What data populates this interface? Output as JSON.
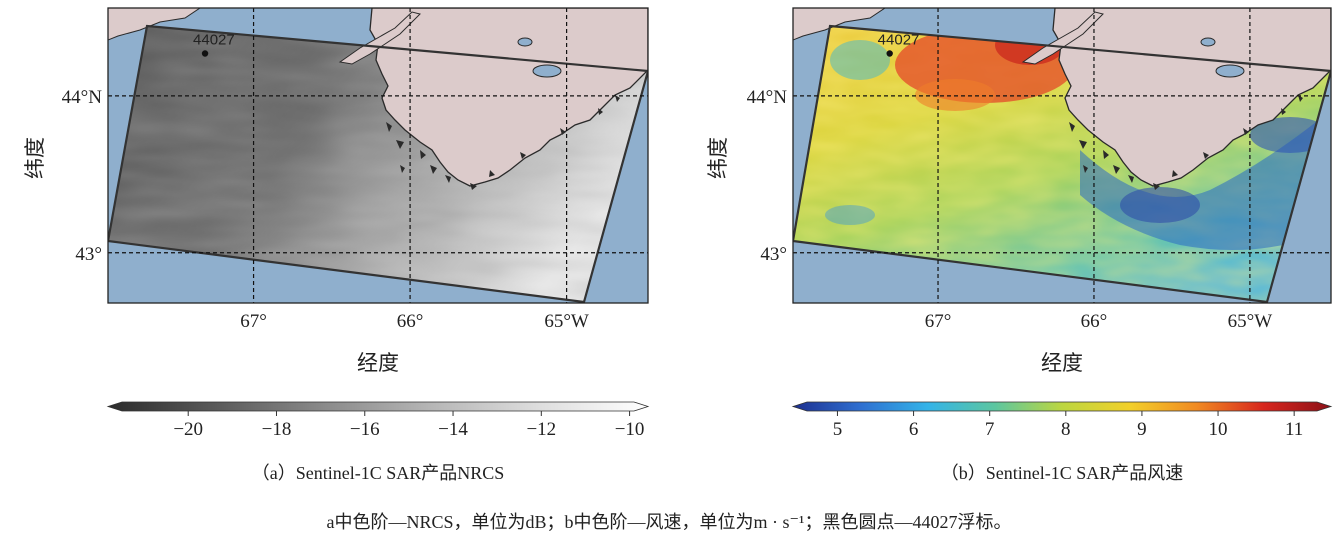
{
  "maps": [
    {
      "id": "a",
      "xlabel": "经度",
      "ylabel": "纬度",
      "lon_ticks": [
        {
          "lon": 67,
          "label": "67°"
        },
        {
          "lon": 66,
          "label": "66°"
        },
        {
          "lon": 65,
          "label": "65°W"
        }
      ],
      "lat_ticks": [
        {
          "lat": 44,
          "label": "44°N"
        },
        {
          "lat": 43,
          "label": "43°"
        }
      ],
      "buoy": {
        "label": "44027",
        "lon": -67.31,
        "lat": 44.27
      },
      "colorbar": {
        "min": -21.5,
        "max": -9.9,
        "ticks": [
          -20,
          -18,
          -16,
          -14,
          -12,
          -10
        ],
        "tick_labels": [
          "−20",
          "−18",
          "−16",
          "−14",
          "−12",
          "−10"
        ],
        "colormap": [
          "#2c2c2c",
          "#5a5a5a",
          "#8a8a8a",
          "#b6b6b6",
          "#dedede",
          "#ffffff"
        ]
      },
      "caption": "（a）Sentinel-1C SAR产品NRCS"
    },
    {
      "id": "b",
      "xlabel": "经度",
      "ylabel": "纬度",
      "lon_ticks": [
        {
          "lon": 67,
          "label": "67°"
        },
        {
          "lon": 66,
          "label": "66°"
        },
        {
          "lon": 65,
          "label": "65°W"
        }
      ],
      "lat_ticks": [
        {
          "lat": 44,
          "label": "44°N"
        },
        {
          "lat": 43,
          "label": "43°"
        }
      ],
      "buoy": {
        "label": "44027",
        "lon": -67.31,
        "lat": 44.27
      },
      "colorbar": {
        "min": 4.6,
        "max": 11.3,
        "ticks": [
          5,
          6,
          7,
          8,
          9,
          10,
          11
        ],
        "tick_labels": [
          "5",
          "6",
          "7",
          "8",
          "9",
          "10",
          "11"
        ],
        "colormap": [
          "#1d2f8f",
          "#2f6fd0",
          "#33b3e8",
          "#5cc6a0",
          "#bcd640",
          "#f2d02a",
          "#f08a22",
          "#d7261e",
          "#8c1017"
        ]
      },
      "caption": "（b）Sentinel-1C SAR产品风速"
    }
  ],
  "map_extent": {
    "lon_min": -67.93,
    "lon_max": -64.48,
    "lat_min": 42.68,
    "lat_max": 44.56
  },
  "note": "a中色阶—NRCS，单位为dB；b中色阶—风速，单位为m · s⁻¹；黑色圆点—44027浮标。",
  "colors": {
    "sea": "#8fafcd",
    "land": "#dccbcb",
    "coast": "#2a2a2a",
    "grid": "#111111"
  }
}
